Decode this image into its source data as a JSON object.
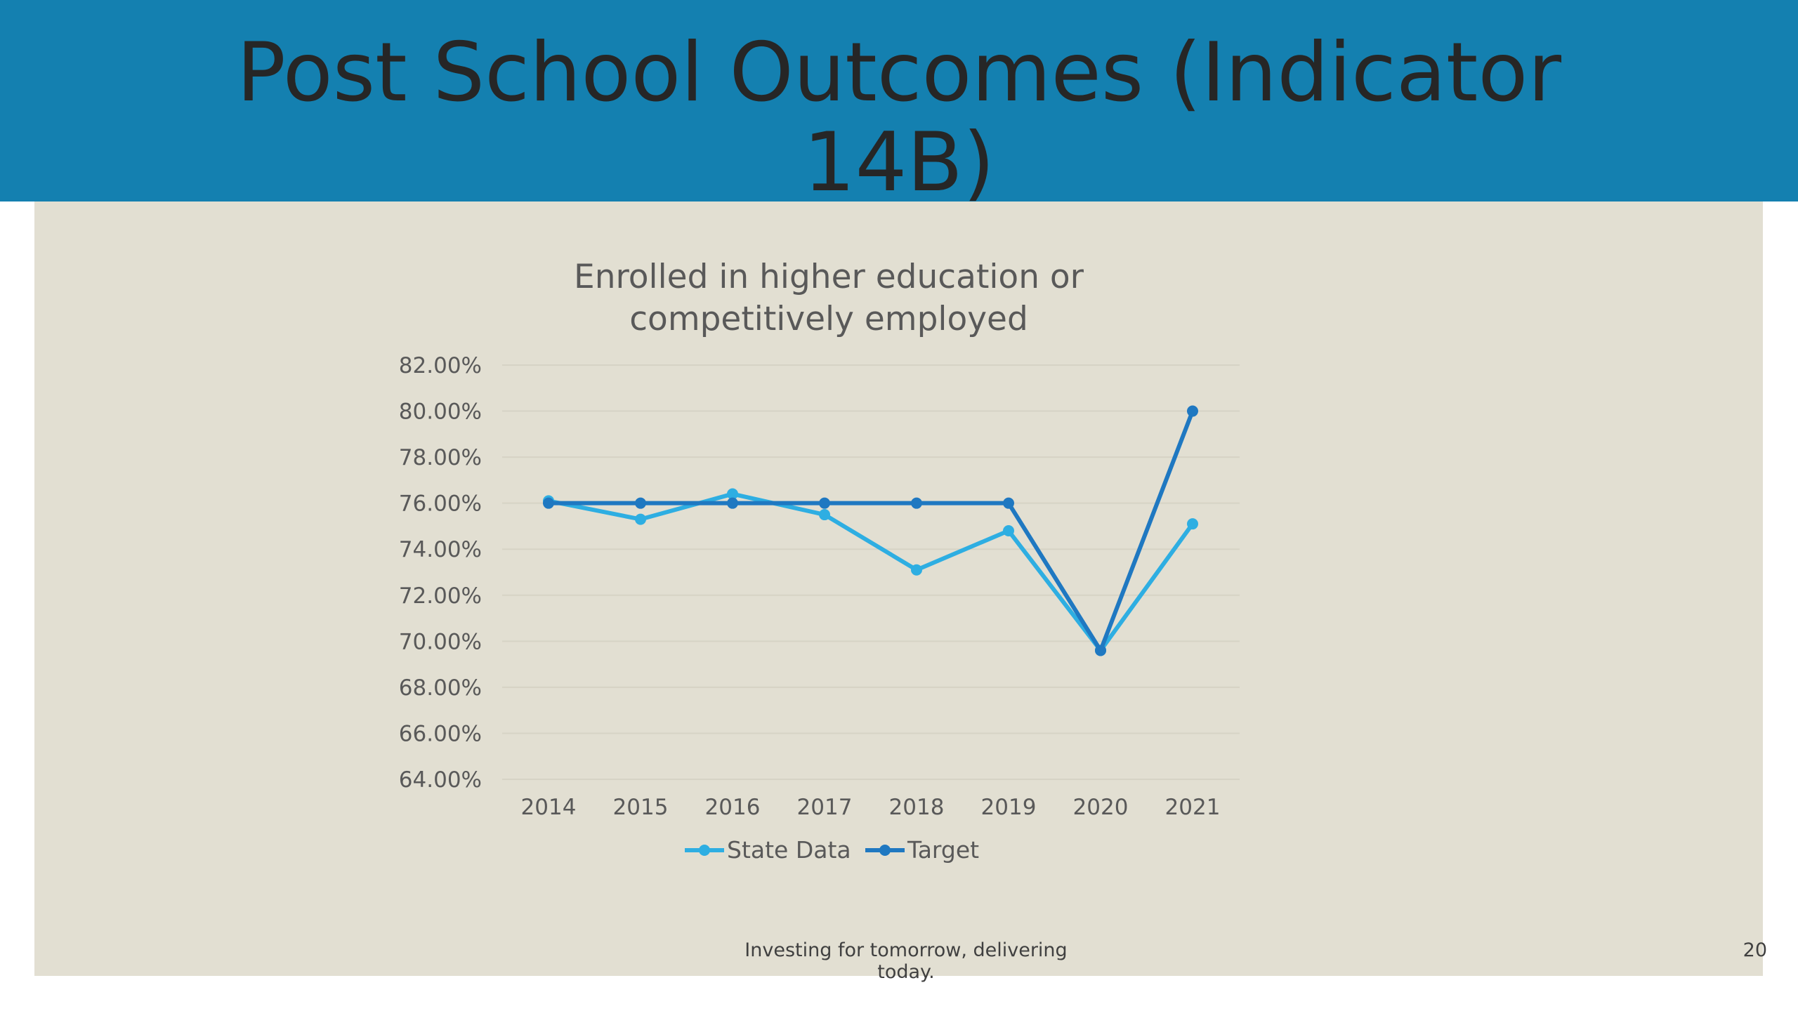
{
  "slide": {
    "title_line1": "Post School Outcomes (Indicator",
    "title_line2": "14B)",
    "footer": "Investing for tomorrow, delivering today.",
    "page_number": "20"
  },
  "colors": {
    "title_band": "#1480b0",
    "panel": "#e2dfd2",
    "state_data": "#2eaee2",
    "target": "#1f78c1"
  },
  "chart_data": {
    "type": "line",
    "title_lines": [
      "Enrolled in higher education or",
      "competitively employed"
    ],
    "x": [
      "2014",
      "2015",
      "2016",
      "2017",
      "2018",
      "2019",
      "2020",
      "2021"
    ],
    "series": [
      {
        "name": "State Data",
        "values": [
          76.1,
          75.3,
          76.4,
          75.5,
          73.1,
          74.8,
          69.6,
          75.1
        ]
      },
      {
        "name": "Target",
        "values": [
          76.0,
          76.0,
          76.0,
          76.0,
          76.0,
          76.0,
          69.6,
          80.0
        ]
      }
    ],
    "ylim": [
      64,
      82
    ],
    "yticks": [
      "64.00%",
      "66.00%",
      "68.00%",
      "70.00%",
      "72.00%",
      "74.00%",
      "76.00%",
      "78.00%",
      "80.00%",
      "82.00%"
    ],
    "grid": true,
    "legend_position": "bottom"
  }
}
